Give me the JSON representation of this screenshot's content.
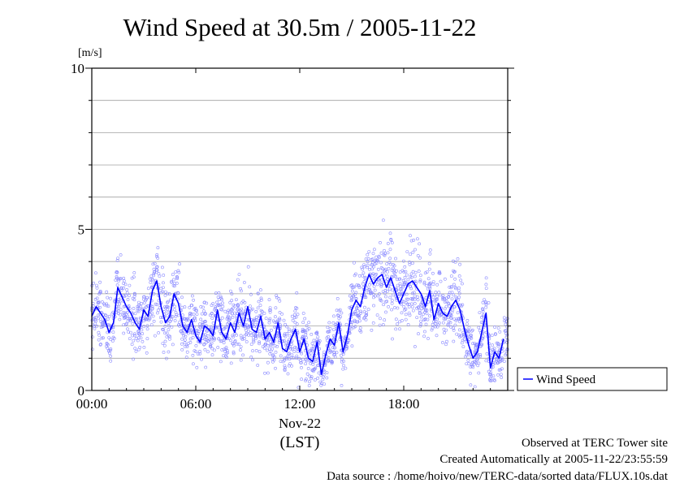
{
  "chart_data": {
    "type": "line",
    "title": "Wind Speed at 30.5m / 2005-11-22",
    "ylabel": "[m/s]",
    "xlabel_date": "Nov-22",
    "xlabel": "(LST)",
    "ylim": [
      0,
      10
    ],
    "xlim": [
      0,
      24
    ],
    "y_ticks": [
      {
        "value": 0,
        "label": "0"
      },
      {
        "value": 5,
        "label": "5"
      },
      {
        "value": 10,
        "label": "10"
      }
    ],
    "x_ticks": [
      {
        "value": 0,
        "label": "00:00"
      },
      {
        "value": 6,
        "label": "06:00"
      },
      {
        "value": 12,
        "label": "12:00"
      },
      {
        "value": 18,
        "label": "18:00"
      }
    ],
    "grid": true,
    "legend_position": "right",
    "series": [
      {
        "name": "Wind Speed",
        "color": "#0000ff",
        "x": [
          0,
          0.25,
          0.5,
          0.75,
          1,
          1.25,
          1.5,
          1.75,
          2,
          2.25,
          2.5,
          2.75,
          3,
          3.25,
          3.5,
          3.75,
          4,
          4.25,
          4.5,
          4.75,
          5,
          5.25,
          5.5,
          5.75,
          6,
          6.25,
          6.5,
          6.75,
          7,
          7.25,
          7.5,
          7.75,
          8,
          8.25,
          8.5,
          8.75,
          9,
          9.25,
          9.5,
          9.75,
          10,
          10.25,
          10.5,
          10.75,
          11,
          11.25,
          11.5,
          11.75,
          12,
          12.25,
          12.5,
          12.75,
          13,
          13.25,
          13.5,
          13.75,
          14,
          14.25,
          14.5,
          14.75,
          15,
          15.25,
          15.5,
          15.75,
          16,
          16.25,
          16.5,
          16.75,
          17,
          17.25,
          17.5,
          17.75,
          18,
          18.25,
          18.5,
          18.75,
          19,
          19.25,
          19.5,
          19.75,
          20,
          20.25,
          20.5,
          20.75,
          21,
          21.25,
          21.5,
          21.75,
          22,
          22.25,
          22.5,
          22.75,
          23,
          23.25,
          23.5,
          23.75
        ],
        "y": [
          2.3,
          2.6,
          2.4,
          2.2,
          1.8,
          2.1,
          3.2,
          2.9,
          2.6,
          2.4,
          2.1,
          1.9,
          2.5,
          2.3,
          3.1,
          3.4,
          2.6,
          2.1,
          2.3,
          3.0,
          2.7,
          2.0,
          1.8,
          2.2,
          1.7,
          1.5,
          2.0,
          1.9,
          1.7,
          2.5,
          1.8,
          1.6,
          2.1,
          1.8,
          2.4,
          2.0,
          2.6,
          1.9,
          1.8,
          2.3,
          1.6,
          1.8,
          1.5,
          2.1,
          1.3,
          1.2,
          1.6,
          1.9,
          1.2,
          1.6,
          1.0,
          0.9,
          1.5,
          0.5,
          1.1,
          1.6,
          1.4,
          2.1,
          1.2,
          1.7,
          2.5,
          2.8,
          2.6,
          3.2,
          3.6,
          3.3,
          3.5,
          3.6,
          3.2,
          3.5,
          3.1,
          2.7,
          3.0,
          3.3,
          3.4,
          3.2,
          3.0,
          2.6,
          3.1,
          2.2,
          2.7,
          2.4,
          2.3,
          2.6,
          2.8,
          2.5,
          1.9,
          1.4,
          1.0,
          1.2,
          1.8,
          2.4,
          0.7,
          1.2,
          1.0,
          1.6
        ]
      }
    ]
  },
  "footer": {
    "line1": "Observed at TERC Tower site",
    "line2": "Created Automatically at 2005-11-22/23:55:59",
    "line3": "Data source : /home/hoivo/new/TERC-data/sorted  data/FLUX.10s.dat"
  }
}
